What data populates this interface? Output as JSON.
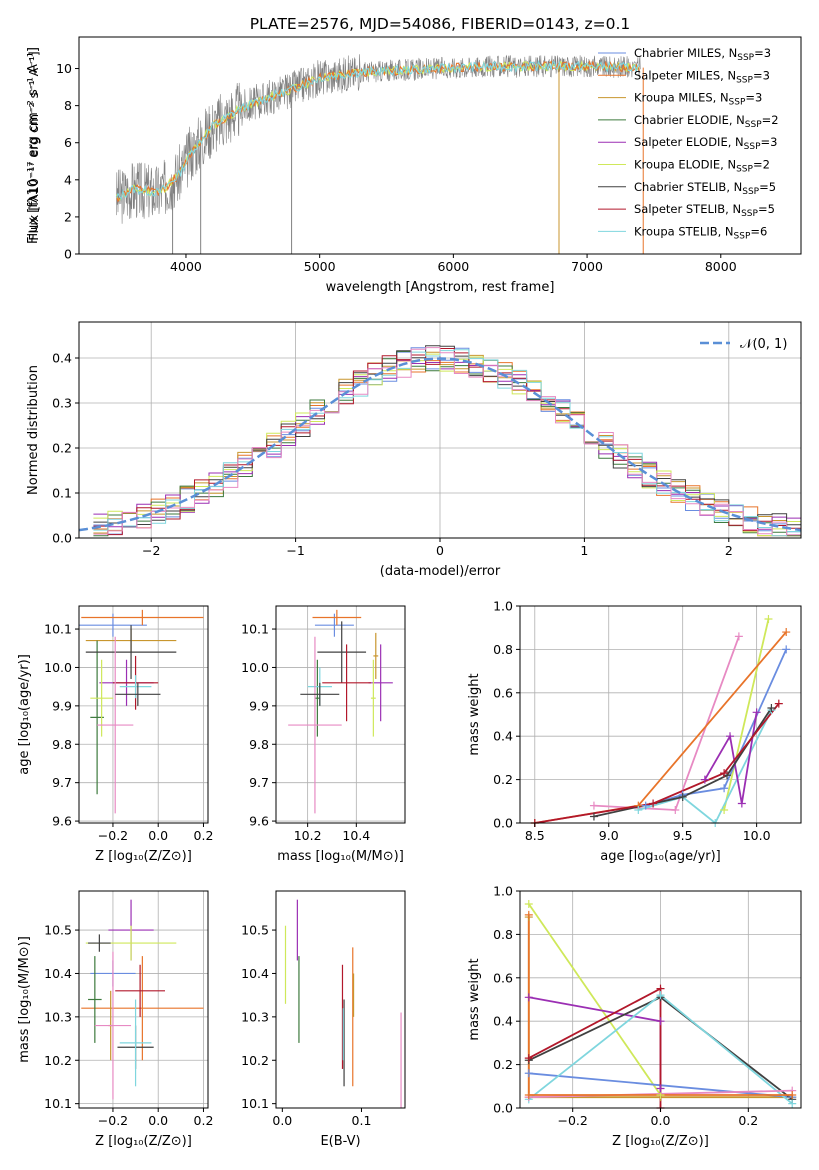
{
  "figure": {
    "title": "PLATE=2576, MJD=54086, FIBERID=0143, z=0.1"
  },
  "colors": {
    "cm": "#6a8de0",
    "sm": "#e8742a",
    "km": "#c8962e",
    "ce": "#3d7a3d",
    "se": "#9b2fb3",
    "ke": "#cfe85a",
    "cs": "#404040",
    "ss": "#b2182b",
    "ks": "#7fd6de",
    "pink": "#e78ac3",
    "data": "#808080",
    "gauss": "#5a8fd6"
  },
  "chart_data": [
    {
      "id": "spectrum",
      "type": "line",
      "xlabel": "wavelength [Angstrom, rest frame]",
      "ylabel": "Flux [fλ10⁻¹⁷ erg cm⁻² s⁻¹ A⁻¹]",
      "xlim": [
        3200,
        8600
      ],
      "ylim": [
        0,
        11.7
      ],
      "xticks": [
        "4000",
        "5000",
        "6000",
        "7000",
        "8000"
      ],
      "yticks": [
        "0",
        "2",
        "4",
        "6",
        "8",
        "10"
      ],
      "grid": false,
      "legend_position": "upper right",
      "continuum": {
        "x": [
          3480,
          3600,
          3800,
          3950,
          4050,
          4200,
          4400,
          4600,
          4800,
          5000,
          5300,
          5600,
          5900,
          6200,
          6500,
          6800,
          7100,
          7400
        ],
        "y": [
          3.0,
          3.5,
          3.3,
          4.3,
          5.6,
          6.9,
          7.8,
          8.4,
          8.9,
          9.5,
          9.8,
          9.9,
          10.0,
          10.1,
          10.1,
          10.15,
          10.1,
          10.05
        ]
      },
      "spikes": [
        {
          "x": 3900,
          "y": 0
        },
        {
          "x": 4110,
          "y": 0
        },
        {
          "x": 4790,
          "y": 0
        },
        {
          "x": 6790,
          "y": 0
        },
        {
          "x": 7420,
          "y": 0
        }
      ],
      "legend": [
        {
          "label": "Chabrier MILES, N",
          "sub": "SSP",
          "suffix": "=3",
          "key": "cm"
        },
        {
          "label": "Salpeter MILES, N",
          "sub": "SSP",
          "suffix": "=3",
          "key": "sm"
        },
        {
          "label": "Kroupa MILES, N",
          "sub": "SSP",
          "suffix": "=3",
          "key": "km"
        },
        {
          "label": "Chabrier ELODIE, N",
          "sub": "SSP",
          "suffix": "=2",
          "key": "ce"
        },
        {
          "label": "Salpeter ELODIE, N",
          "sub": "SSP",
          "suffix": "=3",
          "key": "se"
        },
        {
          "label": "Kroupa ELODIE, N",
          "sub": "SSP",
          "suffix": "=2",
          "key": "ke"
        },
        {
          "label": "Chabrier STELIB, N",
          "sub": "SSP",
          "suffix": "=5",
          "key": "cs"
        },
        {
          "label": "Salpeter STELIB, N",
          "sub": "SSP",
          "suffix": "=5",
          "key": "ss"
        },
        {
          "label": "Kroupa STELIB, N",
          "sub": "SSP",
          "suffix": "=6",
          "key": "ks"
        }
      ]
    },
    {
      "id": "residuals",
      "type": "histogram",
      "xlabel": "(data-model)/error",
      "ylabel": "Normed distribution",
      "xlim": [
        -2.5,
        2.5
      ],
      "ylim": [
        0,
        0.48
      ],
      "xticks": [
        "−2",
        "−1",
        "0",
        "1",
        "2"
      ],
      "yticks": [
        "0.0",
        "0.1",
        "0.2",
        "0.3",
        "0.4"
      ],
      "grid": true,
      "legend_position": "upper right",
      "legend_label": "𝒩(0, 1)",
      "bin_start": -2.4,
      "bin_width": 0.1,
      "series": [
        {
          "key": "cm",
          "jitter": 1
        },
        {
          "key": "sm",
          "jitter": 2
        },
        {
          "key": "km",
          "jitter": 3
        },
        {
          "key": "ce",
          "jitter": 4
        },
        {
          "key": "se",
          "jitter": 5
        },
        {
          "key": "ke",
          "jitter": 6
        },
        {
          "key": "cs",
          "jitter": 7
        },
        {
          "key": "ss",
          "jitter": 8
        },
        {
          "key": "ks",
          "jitter": 9
        },
        {
          "key": "pink",
          "jitter": 10
        }
      ]
    },
    {
      "id": "age-vs-z",
      "type": "errorbar",
      "xlabel": "Z [log₁₀(Z/Z⊙)]",
      "ylabel": "age  [log₁₀(age/yr)]",
      "xlim": [
        -0.35,
        0.22
      ],
      "ylim": [
        9.595,
        10.16
      ],
      "xticks": [
        "−0.2",
        "0.0",
        "0.2"
      ],
      "xtick_values": [
        -0.2,
        0,
        0.2
      ],
      "yticks": [
        "9.6",
        "9.7",
        "9.8",
        "9.9",
        "10.0",
        "10.1"
      ],
      "ytick_values": [
        9.6,
        9.7,
        9.8,
        9.9,
        10.0,
        10.1
      ],
      "grid": true,
      "points": [
        {
          "key": "cm",
          "x": -0.2,
          "xerr": 0.15,
          "y": 10.11,
          "yerr": 0.03
        },
        {
          "key": "sm",
          "x": -0.07,
          "xerr": 0.27,
          "y": 10.13,
          "yerr": 0.02
        },
        {
          "key": "km",
          "x": -0.12,
          "xerr": 0.2,
          "y": 10.07,
          "yerr": 0.03
        },
        {
          "key": "ce",
          "x": -0.27,
          "xerr": 0.03,
          "y": 9.87,
          "yerr": 0.2
        },
        {
          "key": "se",
          "x": -0.14,
          "xerr": 0.12,
          "y": 9.96,
          "yerr": 0.06
        },
        {
          "key": "ke",
          "x": -0.25,
          "xerr": 0.05,
          "y": 9.92,
          "yerr": 0.1
        },
        {
          "key": "cs",
          "x": -0.12,
          "xerr": 0.2,
          "y": 10.04,
          "yerr": 0.07
        },
        {
          "key": "ss",
          "x": -0.1,
          "xerr": 0.1,
          "y": 9.96,
          "yerr": 0.07
        },
        {
          "key": "ks",
          "x": -0.1,
          "xerr": 0.07,
          "y": 9.95,
          "yerr": 0.03
        },
        {
          "key": "pink",
          "x": -0.19,
          "xerr": 0.08,
          "y": 9.85,
          "yerr": 0.23
        },
        {
          "key": "cs",
          "x": -0.09,
          "xerr": 0.1,
          "y": 9.93,
          "yerr": 0.03
        }
      ]
    },
    {
      "id": "age-vs-mass",
      "type": "errorbar",
      "xlabel": "mass [log₁₀(M/M⊙)]",
      "ylabel": "",
      "xlim": [
        10.07,
        10.6
      ],
      "ylim": [
        9.595,
        10.16
      ],
      "xticks": [
        "10.2",
        "10.4"
      ],
      "xtick_values": [
        10.2,
        10.4
      ],
      "yticks": [
        "9.6",
        "9.7",
        "9.8",
        "9.9",
        "10.0",
        "10.1"
      ],
      "ytick_values": [
        9.6,
        9.7,
        9.8,
        9.9,
        10.0,
        10.1
      ],
      "grid": true,
      "points": [
        {
          "key": "cm",
          "x": 10.31,
          "xerr": 0.08,
          "y": 10.11,
          "yerr": 0.03
        },
        {
          "key": "sm",
          "x": 10.32,
          "xerr": 0.1,
          "y": 10.13,
          "yerr": 0.02
        },
        {
          "key": "km",
          "x": 10.48,
          "xerr": 0.01,
          "y": 10.03,
          "yerr": 0.06
        },
        {
          "key": "ce",
          "x": 10.24,
          "xerr": 0.01,
          "y": 9.92,
          "yerr": 0.1
        },
        {
          "key": "se",
          "x": 10.5,
          "xerr": 0.05,
          "y": 9.96,
          "yerr": 0.1
        },
        {
          "key": "ke",
          "x": 10.47,
          "xerr": 0.01,
          "y": 9.92,
          "yerr": 0.1
        },
        {
          "key": "cs",
          "x": 10.34,
          "xerr": 0.1,
          "y": 10.04,
          "yerr": 0.08
        },
        {
          "key": "ss",
          "x": 10.36,
          "xerr": 0.1,
          "y": 9.96,
          "yerr": 0.1
        },
        {
          "key": "ks",
          "x": 10.25,
          "xerr": 0.05,
          "y": 9.95,
          "yerr": 0.05
        },
        {
          "key": "pink",
          "x": 10.23,
          "xerr": 0.11,
          "y": 9.85,
          "yerr": 0.23
        },
        {
          "key": "cs",
          "x": 10.25,
          "xerr": 0.08,
          "y": 9.93,
          "yerr": 0.03
        }
      ]
    },
    {
      "id": "weight-vs-age",
      "type": "line",
      "xlabel": "age  [log₁₀(age/yr)]",
      "ylabel": "mass weight",
      "xlim": [
        8.4,
        10.3
      ],
      "ylim": [
        0,
        1.0
      ],
      "xticks": [
        "8.5",
        "9.0",
        "9.5",
        "10.0"
      ],
      "xtick_values": [
        8.5,
        9.0,
        9.5,
        10.0
      ],
      "yticks": [
        "0.0",
        "0.2",
        "0.4",
        "0.6",
        "0.8",
        "1.0"
      ],
      "ytick_values": [
        0,
        0.2,
        0.4,
        0.6,
        0.8,
        1.0
      ],
      "grid": true,
      "series": [
        {
          "key": "pink",
          "x": [
            8.9,
            9.45,
            9.88
          ],
          "y": [
            0.08,
            0.06,
            0.86
          ]
        },
        {
          "key": "ke",
          "x": [
            9.78,
            10.08
          ],
          "y": [
            0.06,
            0.94
          ]
        },
        {
          "key": "sm",
          "x": [
            8.5,
            9.2,
            10.2
          ],
          "y": [
            0.0,
            0.08,
            0.88
          ]
        },
        {
          "key": "cm",
          "x": [
            9.25,
            9.5,
            9.78,
            10.2
          ],
          "y": [
            0.08,
            0.13,
            0.16,
            0.8
          ]
        },
        {
          "key": "ks",
          "x": [
            9.2,
            9.5,
            9.72,
            10.1
          ],
          "y": [
            0.06,
            0.12,
            0.0,
            0.52
          ]
        },
        {
          "key": "se",
          "x": [
            9.65,
            9.82,
            9.9,
            10.0
          ],
          "y": [
            0.2,
            0.4,
            0.09,
            0.51
          ]
        },
        {
          "key": "cs",
          "x": [
            8.9,
            9.5,
            9.8,
            10.1
          ],
          "y": [
            0.03,
            0.12,
            0.22,
            0.53
          ]
        },
        {
          "key": "ss",
          "x": [
            8.5,
            9.3,
            9.78,
            10.15
          ],
          "y": [
            0.0,
            0.09,
            0.23,
            0.55
          ]
        }
      ]
    },
    {
      "id": "mass-vs-z",
      "type": "errorbar",
      "xlabel": "Z [log₁₀(Z/Z⊙)]",
      "ylabel": "mass [log₁₀(M/M⊙)]",
      "xlim": [
        -0.35,
        0.22
      ],
      "ylim": [
        10.09,
        10.59
      ],
      "xticks": [
        "−0.2",
        "0.0",
        "0.2"
      ],
      "xtick_values": [
        -0.2,
        0,
        0.2
      ],
      "yticks": [
        "10.1",
        "10.2",
        "10.3",
        "10.4",
        "10.5"
      ],
      "ytick_values": [
        10.1,
        10.2,
        10.3,
        10.4,
        10.5
      ],
      "grid": true,
      "points": [
        {
          "key": "cm",
          "x": -0.2,
          "xerr": 0.1,
          "y": 10.4,
          "yerr": 0.03
        },
        {
          "key": "sm",
          "x": -0.07,
          "xerr": 0.27,
          "y": 10.32,
          "yerr": 0.12
        },
        {
          "key": "km",
          "x": -0.21,
          "xerr": 0.01,
          "y": 10.28,
          "yerr": 0.08
        },
        {
          "key": "ce",
          "x": -0.28,
          "xerr": 0.03,
          "y": 10.34,
          "yerr": 0.1
        },
        {
          "key": "se",
          "x": -0.12,
          "xerr": 0.1,
          "y": 10.5,
          "yerr": 0.07
        },
        {
          "key": "ke",
          "x": -0.12,
          "xerr": 0.2,
          "y": 10.47,
          "yerr": 0.04
        },
        {
          "key": "cs",
          "x": -0.1,
          "xerr": 0.08,
          "y": 10.23,
          "yerr": 0.05
        },
        {
          "key": "ss",
          "x": -0.08,
          "xerr": 0.11,
          "y": 10.36,
          "yerr": 0.06
        },
        {
          "key": "ks",
          "x": -0.1,
          "xerr": 0.07,
          "y": 10.24,
          "yerr": 0.1
        },
        {
          "key": "pink",
          "x": -0.2,
          "xerr": 0.08,
          "y": 10.28,
          "yerr": 0.17
        },
        {
          "key": "cs",
          "x": -0.26,
          "xerr": 0.05,
          "y": 10.47,
          "yerr": 0.02
        }
      ]
    },
    {
      "id": "mass-vs-ebv",
      "type": "errorbar",
      "xlabel": "E(B-V)",
      "ylabel": "",
      "xlim": [
        -0.008,
        0.155
      ],
      "ylim": [
        10.09,
        10.59
      ],
      "xticks": [
        "0.0",
        "0.1"
      ],
      "xtick_values": [
        0,
        0.1
      ],
      "yticks": [
        "10.1",
        "10.2",
        "10.3",
        "10.4",
        "10.5"
      ],
      "ytick_values": [
        10.1,
        10.2,
        10.3,
        10.4,
        10.5
      ],
      "grid": false,
      "points": [
        {
          "key": "ke",
          "x": 0.004,
          "xerr": 0,
          "y": 10.42,
          "yerr": 0.09
        },
        {
          "key": "se",
          "x": 0.019,
          "xerr": 0,
          "y": 10.5,
          "yerr": 0.07
        },
        {
          "key": "ce",
          "x": 0.021,
          "xerr": 0,
          "y": 10.34,
          "yerr": 0.1
        },
        {
          "key": "cs",
          "x": 0.078,
          "xerr": 0,
          "y": 10.24,
          "yerr": 0.1
        },
        {
          "key": "ss",
          "x": 0.076,
          "xerr": 0,
          "y": 10.3,
          "yerr": 0.12
        },
        {
          "key": "ks",
          "x": 0.077,
          "xerr": 0,
          "y": 10.26,
          "yerr": 0.06
        },
        {
          "key": "sm",
          "x": 0.089,
          "xerr": 0,
          "y": 10.3,
          "yerr": 0.16
        },
        {
          "key": "km",
          "x": 0.09,
          "xerr": 0,
          "y": 10.35,
          "yerr": 0.05
        },
        {
          "key": "pink",
          "x": 0.15,
          "xerr": 0,
          "y": 10.2,
          "yerr": 0.11
        }
      ]
    },
    {
      "id": "weight-vs-z",
      "type": "line",
      "xlabel": "Z [log₁₀(Z/Z⊙)]",
      "ylabel": "mass weight",
      "xlim": [
        -0.32,
        0.32
      ],
      "ylim": [
        0,
        1.0
      ],
      "xticks": [
        "−0.2",
        "0.0",
        "0.2"
      ],
      "xtick_values": [
        -0.2,
        0,
        0.2
      ],
      "yticks": [
        "0.0",
        "0.2",
        "0.4",
        "0.6",
        "0.8",
        "1.0"
      ],
      "ytick_values": [
        0,
        0.2,
        0.4,
        0.6,
        0.8,
        1.0
      ],
      "grid": true,
      "series": [
        {
          "key": "km",
          "x": [
            -0.3,
            -0.3,
            0.0,
            0.3
          ],
          "y": [
            0.88,
            0.05,
            0.05,
            0.05
          ]
        },
        {
          "key": "ke",
          "x": [
            -0.3,
            0.0
          ],
          "y": [
            0.94,
            0.06
          ]
        },
        {
          "key": "se",
          "x": [
            -0.3,
            0.0,
            0.0
          ],
          "y": [
            0.51,
            0.4,
            0.09
          ]
        },
        {
          "key": "cm",
          "x": [
            -0.3,
            0.3
          ],
          "y": [
            0.16,
            0.05
          ]
        },
        {
          "key": "cs",
          "x": [
            -0.3,
            0.0,
            0.3
          ],
          "y": [
            0.22,
            0.51,
            0.04
          ]
        },
        {
          "key": "ss",
          "x": [
            -0.3,
            0.0,
            0.0
          ],
          "y": [
            0.23,
            0.55,
            0.0
          ]
        },
        {
          "key": "ks",
          "x": [
            -0.3,
            0.0,
            0.3
          ],
          "y": [
            0.04,
            0.52,
            0.02
          ]
        },
        {
          "key": "pink",
          "x": [
            -0.3,
            0.3
          ],
          "y": [
            0.05,
            0.08
          ]
        },
        {
          "key": "sm",
          "x": [
            -0.3,
            -0.3,
            0.3
          ],
          "y": [
            0.89,
            0.06,
            0.06
          ]
        }
      ]
    }
  ]
}
